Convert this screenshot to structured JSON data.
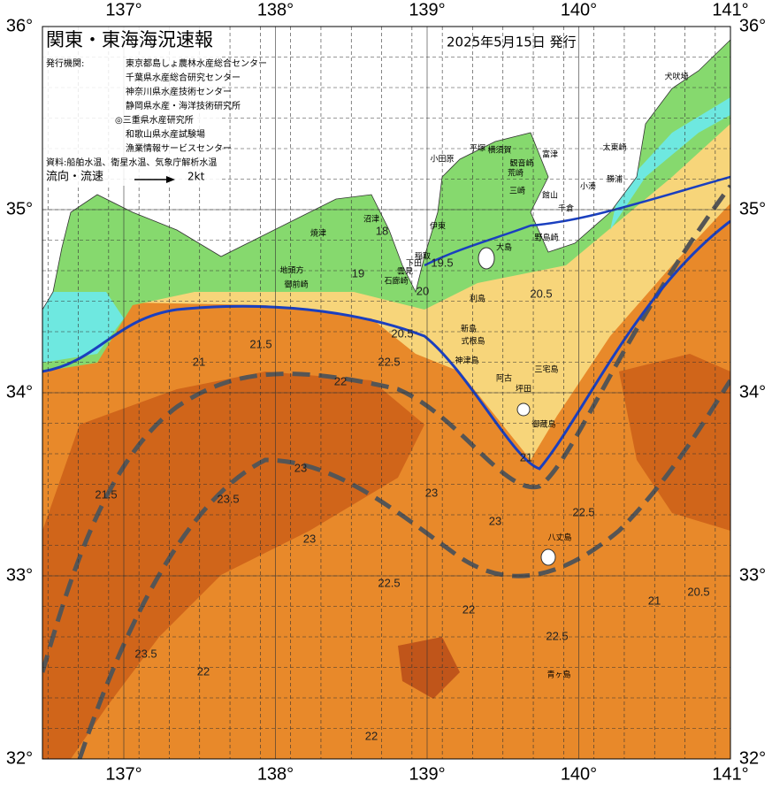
{
  "header": {
    "title": "関東・東海海況速報",
    "date": "2025年5月15日 発行",
    "agencies_label": "発行機関:",
    "agencies": [
      "東京都島しょ農林水産総合センター",
      "千葉県水産総合研究センター",
      "神奈川県水産技術センター",
      "静岡県水産・海洋技術研究所",
      "◎三重県水産研究所",
      "和歌山県水産試験場",
      "漁業情報サービスセンター"
    ],
    "source": "資料:船舶水温、衛星水温、気象庁解析水温",
    "flow_label": "流向・流速",
    "flow_scale": "2kt"
  },
  "map": {
    "lon_ticks": [
      {
        "value": 137,
        "label": "137°"
      },
      {
        "value": 138,
        "label": "138°"
      },
      {
        "value": 139,
        "label": "139°"
      },
      {
        "value": 140,
        "label": "140°"
      },
      {
        "value": 141,
        "label": "141°"
      }
    ],
    "lat_ticks": [
      {
        "value": 36,
        "label": "36°"
      },
      {
        "value": 35,
        "label": "35°"
      },
      {
        "value": 34,
        "label": "34°"
      },
      {
        "value": 33,
        "label": "33°"
      },
      {
        "value": 32,
        "label": "32°"
      }
    ],
    "places": [
      "犬吠埼",
      "太東崎",
      "勝浦",
      "小湊",
      "千倉",
      "館山",
      "野島崎",
      "富津",
      "観音崎",
      "横須賀",
      "荒崎",
      "三崎",
      "平塚",
      "小田原",
      "伊東",
      "稲取",
      "下田",
      "大島",
      "利島",
      "新島",
      "式根島",
      "神津島",
      "三宅島",
      "阿古",
      "坪田",
      "御蔵島",
      "八丈島",
      "青ヶ島",
      "焼津",
      "沼津",
      "地頭方",
      "御前崎",
      "石廊崎",
      "雲見"
    ],
    "contour_labels": [
      "18",
      "19",
      "19.5",
      "20",
      "20.5",
      "20.5",
      "21",
      "21.5",
      "22",
      "22.5",
      "23",
      "23.5",
      "22.5",
      "22",
      "23",
      "21",
      "21.5",
      "23",
      "22.5",
      "20.5",
      "22",
      "23.5",
      "21",
      "22.5",
      "23",
      "22"
    ]
  }
}
